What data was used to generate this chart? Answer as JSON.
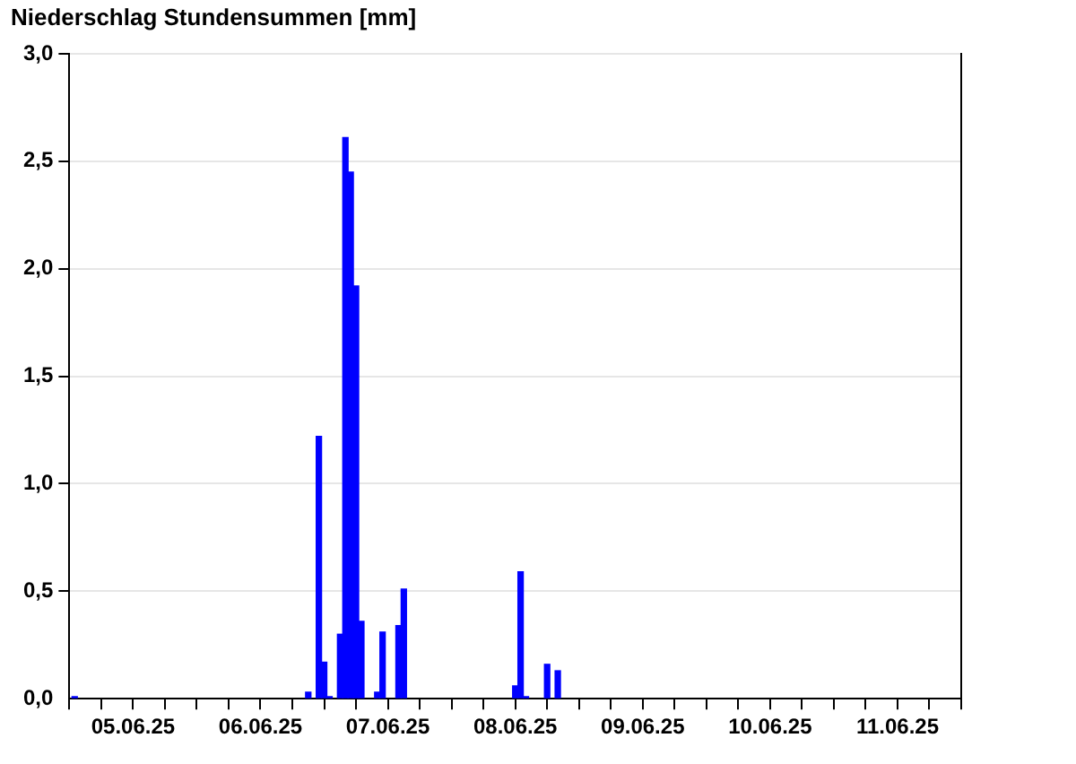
{
  "chart_data": {
    "type": "bar",
    "title": "Niederschlag Stundensummen [mm]",
    "x": [
      "--06-05T01:00",
      "--06-06T21:00",
      "--06-06T23:00",
      "--06-07T00:00",
      "--06-07T01:00",
      "--06-07T03:00",
      "--06-07T04:00",
      "--06-07T05:00",
      "--06-07T06:00",
      "--06-07T07:00",
      "--06-07T10:00",
      "--06-07T11:00",
      "--06-07T14:00",
      "--06-07T15:00",
      "--06-08T12:00",
      "--06-08T13:00",
      "--06-08T14:00",
      "--06-08T18:00",
      "--06-08T20:00"
    ],
    "values": [
      0.01,
      0.03,
      1.22,
      0.17,
      0.01,
      0.3,
      2.61,
      2.45,
      1.92,
      0.36,
      0.03,
      0.31,
      0.34,
      0.51,
      0.06,
      0.59,
      0.01,
      0.16,
      0.13
    ],
    "color": "#0000ff",
    "xlim": [
      "--06-05T00:00",
      "--06-12T00:00"
    ],
    "xticks": [
      {
        "value": "--06-05T00:00",
        "label": null
      },
      {
        "value": "--06-05T06:00",
        "label": null
      },
      {
        "value": "--06-05T12:00",
        "label": "05.06.25"
      },
      {
        "value": "--06-05T18:00",
        "label": null
      },
      {
        "value": "--06-06T00:00",
        "label": null
      },
      {
        "value": "--06-06T06:00",
        "label": null
      },
      {
        "value": "--06-06T12:00",
        "label": "06.06.25"
      },
      {
        "value": "--06-06T18:00",
        "label": null
      },
      {
        "value": "--06-07T00:00",
        "label": null
      },
      {
        "value": "--06-07T06:00",
        "label": null
      },
      {
        "value": "--06-07T12:00",
        "label": "07.06.25"
      },
      {
        "value": "--06-07T18:00",
        "label": null
      },
      {
        "value": "--06-08T00:00",
        "label": null
      },
      {
        "value": "--06-08T06:00",
        "label": null
      },
      {
        "value": "--06-08T12:00",
        "label": "08.06.25"
      },
      {
        "value": "--06-08T18:00",
        "label": null
      },
      {
        "value": "--06-09T00:00",
        "label": null
      },
      {
        "value": "--06-09T06:00",
        "label": null
      },
      {
        "value": "--06-09T12:00",
        "label": "09.06.25"
      },
      {
        "value": "--06-09T18:00",
        "label": null
      },
      {
        "value": "--06-10T00:00",
        "label": null
      },
      {
        "value": "--06-10T06:00",
        "label": null
      },
      {
        "value": "--06-10T12:00",
        "label": "10.06.25"
      },
      {
        "value": "--06-10T18:00",
        "label": null
      },
      {
        "value": "--06-11T00:00",
        "label": null
      },
      {
        "value": "--06-11T06:00",
        "label": null
      },
      {
        "value": "--06-11T12:00",
        "label": "11.06.25"
      },
      {
        "value": "--06-11T18:00",
        "label": null
      },
      {
        "value": "--06-12T00:00",
        "label": null
      }
    ],
    "ylim": [
      0,
      3
    ],
    "yticks": [
      {
        "value": 0,
        "label": "0,0"
      },
      {
        "value": 0.5,
        "label": "0,5"
      },
      {
        "value": 1,
        "label": "1,0"
      },
      {
        "value": 1.5,
        "label": "1,5"
      },
      {
        "value": 2,
        "label": "2,0"
      },
      {
        "value": 2.5,
        "label": "2,5"
      },
      {
        "value": 3,
        "label": "3,0"
      }
    ],
    "grid": "y",
    "legend": false
  }
}
